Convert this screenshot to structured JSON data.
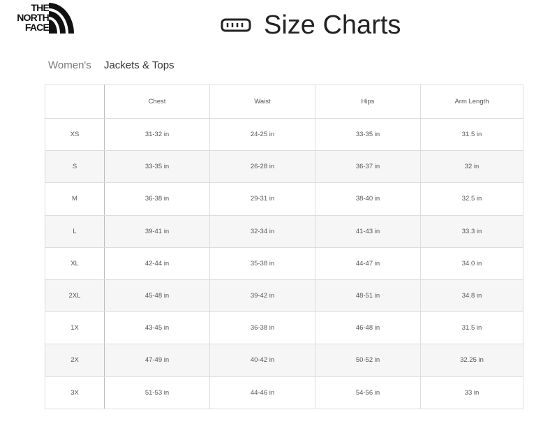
{
  "brand": {
    "logo_text": [
      "THE",
      "NORTH",
      "FACE"
    ]
  },
  "header": {
    "title": "Size Charts",
    "icon": "ruler-icon"
  },
  "breadcrumb": {
    "category": "Women's",
    "subcategory": "Jackets & Tops"
  },
  "table": {
    "columns": [
      "",
      "Chest",
      "Waist",
      "Hips",
      "Arm Length"
    ],
    "rows": [
      [
        "XS",
        "31-32 in",
        "24-25 in",
        "33-35 in",
        "31.5 in"
      ],
      [
        "S",
        "33-35 in",
        "26-28 in",
        "36-37 in",
        "32 in"
      ],
      [
        "M",
        "36-38 in",
        "29-31 in",
        "38-40 in",
        "32.5 in"
      ],
      [
        "L",
        "39-41 in",
        "32-34 in",
        "41-43 in",
        "33.3 in"
      ],
      [
        "XL",
        "42-44 in",
        "35-38 in",
        "44-47 in",
        "34.0 in"
      ],
      [
        "2XL",
        "45-48 in",
        "39-42 in",
        "48-51 in",
        "34.8 in"
      ],
      [
        "1X",
        "43-45 in",
        "36-38 in",
        "46-48 in",
        "31.5 in"
      ],
      [
        "2X",
        "47-49 in",
        "40-42 in",
        "50-52 in",
        "32.25 in"
      ],
      [
        "3X",
        "51-53 in",
        "44-46 in",
        "54-56 in",
        "33 in"
      ]
    ]
  }
}
